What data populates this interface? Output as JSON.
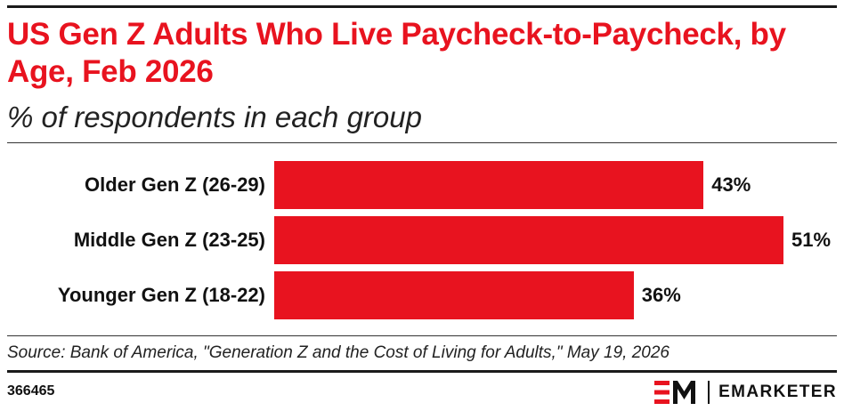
{
  "header": {
    "title": "US Gen Z Adults Who Live Paycheck-to-Paycheck, by Age, Feb 2026",
    "subtitle": "% of respondents in each group"
  },
  "chart_data": {
    "type": "bar",
    "orientation": "horizontal",
    "title": "US Gen Z Adults Who Live Paycheck-to-Paycheck, by Age, Feb 2026",
    "subtitle": "% of respondents in each group",
    "categories": [
      "Older Gen Z (26-29)",
      "Middle Gen Z (23-25)",
      "Younger Gen Z (18-22)"
    ],
    "values": [
      43,
      51,
      36
    ],
    "value_labels": [
      "43%",
      "51%",
      "36%"
    ],
    "xlim": [
      0,
      51
    ],
    "grid": false,
    "legend": "none",
    "bar_color": "#e8131f"
  },
  "footer": {
    "source": "Source: Bank of America, \"Generation Z and the Cost of Living for Adults,\" May 19, 2026",
    "chart_id": "366465",
    "brand_name": "EMARKETER",
    "brand_logo": "EM",
    "brand_color": "#e8131f"
  }
}
